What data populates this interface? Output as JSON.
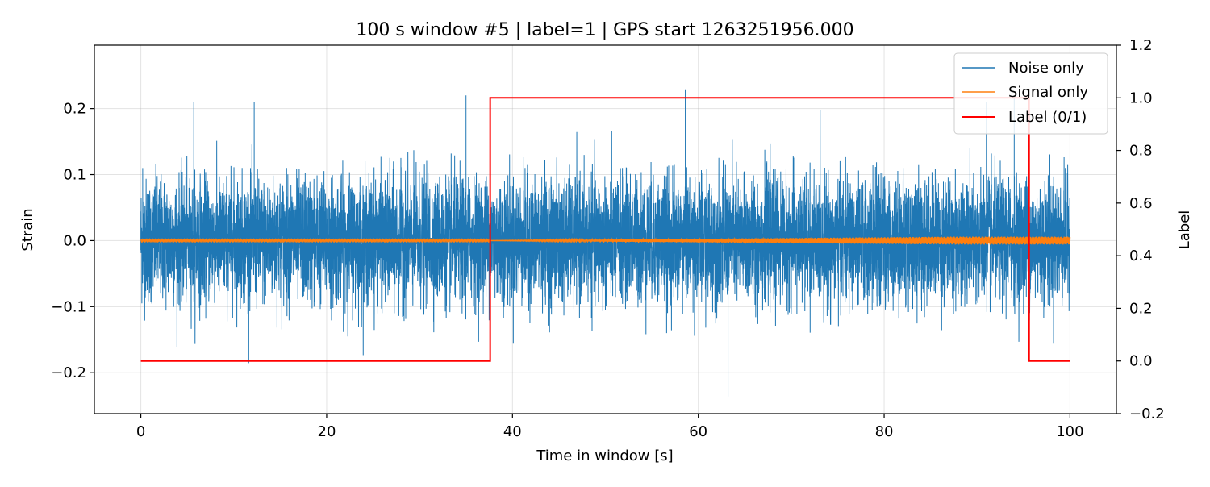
{
  "chart_data": {
    "type": "line",
    "title": "100 s window #5 | label=1 | GPS start 1263251956.000",
    "xlabel": "Time in window [s]",
    "ylabel": "Strain",
    "y2label": "Label",
    "xlim": [
      -5,
      105
    ],
    "ylim": [
      -0.262,
      0.296
    ],
    "y2lim": [
      -0.2,
      1.2
    ],
    "xticks": [
      0,
      20,
      40,
      60,
      80,
      100
    ],
    "xtick_labels": [
      "0",
      "20",
      "40",
      "60",
      "80",
      "100"
    ],
    "yticks": [
      -0.2,
      -0.1,
      0.0,
      0.1,
      0.2
    ],
    "ytick_labels": [
      "−0.2",
      "−0.1",
      "0.0",
      "0.1",
      "0.2"
    ],
    "y2ticks": [
      -0.2,
      0.0,
      0.2,
      0.4,
      0.6,
      0.8,
      1.0,
      1.2
    ],
    "y2tick_labels": [
      "−0.2",
      "0.0",
      "0.2",
      "0.4",
      "0.6",
      "0.8",
      "1.0",
      "1.2"
    ],
    "grid": true,
    "legend_position": "top-right",
    "series": [
      {
        "name": "Noise only",
        "color": "#1f77b4",
        "axis": "left",
        "x_range": [
          0,
          100
        ],
        "envelope_min": -0.236,
        "envelope_max": 0.228,
        "typical_abs_peak": 0.12,
        "description_points": [
          [
            0.2,
            0.11
          ],
          [
            5.7,
            0.21
          ],
          [
            12.2,
            0.21
          ],
          [
            35.0,
            0.22
          ],
          [
            58.6,
            0.228
          ],
          [
            63.2,
            -0.236
          ],
          [
            91.0,
            0.21
          ],
          [
            94.0,
            0.22
          ]
        ]
      },
      {
        "name": "Signal only",
        "color": "#ff7f0e",
        "axis": "left",
        "x_range": [
          0,
          100
        ],
        "values_note": "near zero",
        "max_abs": 0.006
      },
      {
        "name": "Label (0/1)",
        "color": "#ff0000",
        "axis": "right",
        "x": [
          0,
          37.6,
          37.6,
          95.6,
          95.6,
          100
        ],
        "y": [
          0,
          0,
          1,
          1,
          0,
          0
        ]
      }
    ]
  }
}
